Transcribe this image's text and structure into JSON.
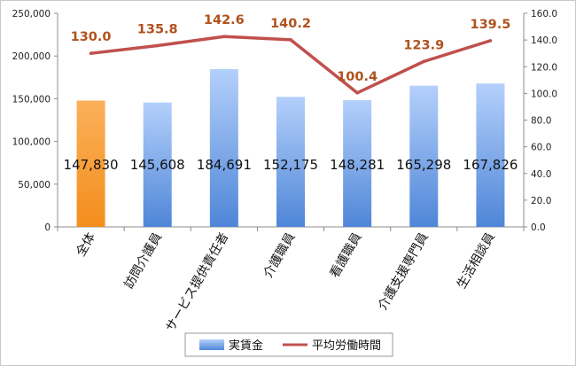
{
  "chart_data": {
    "type": "bar",
    "categories": [
      "全体",
      "訪問介護員",
      "サービス提供責任者",
      "介護職員",
      "看護職員",
      "介護支援専門員",
      "生活相談員"
    ],
    "series": [
      {
        "name": "実賃金",
        "type": "bar",
        "axis": "left",
        "values": [
          147830,
          145608,
          184691,
          152175,
          148281,
          165298,
          167826
        ],
        "labels": [
          "147,830",
          "145,608",
          "184,691",
          "152,175",
          "148,281",
          "165,298",
          "167,826"
        ]
      },
      {
        "name": "平均労働時間",
        "type": "line",
        "axis": "right",
        "values": [
          130.0,
          135.8,
          142.6,
          140.2,
          100.4,
          123.9,
          139.5
        ],
        "labels": [
          "130.0",
          "135.8",
          "142.6",
          "140.2",
          "100.4",
          "123.9",
          "139.5"
        ]
      }
    ],
    "y_left": {
      "min": 0,
      "max": 250000,
      "ticks": [
        0,
        50000,
        100000,
        150000,
        200000,
        250000
      ],
      "tick_labels": [
        "0",
        "50,000",
        "100,000",
        "150,000",
        "200,000",
        "250,000"
      ]
    },
    "y_right": {
      "min": 0,
      "max": 160,
      "ticks": [
        0,
        20,
        40,
        60,
        80,
        100,
        120,
        140,
        160
      ],
      "tick_labels": [
        "0.0",
        "20.0",
        "40.0",
        "60.0",
        "80.0",
        "100.0",
        "120.0",
        "140.0",
        "160.0"
      ]
    },
    "title": "",
    "xlabel": "",
    "ylabel": "",
    "grid": false,
    "legend_position": "bottom",
    "highlight_category": "全体",
    "colors": {
      "bar": "#4f86d8",
      "bar_light": "#b4d0fb",
      "bar_highlight": "#f79a2e",
      "line": "#c0504d",
      "line_label": "#b0521e",
      "axis": "#8c8c8c"
    }
  }
}
